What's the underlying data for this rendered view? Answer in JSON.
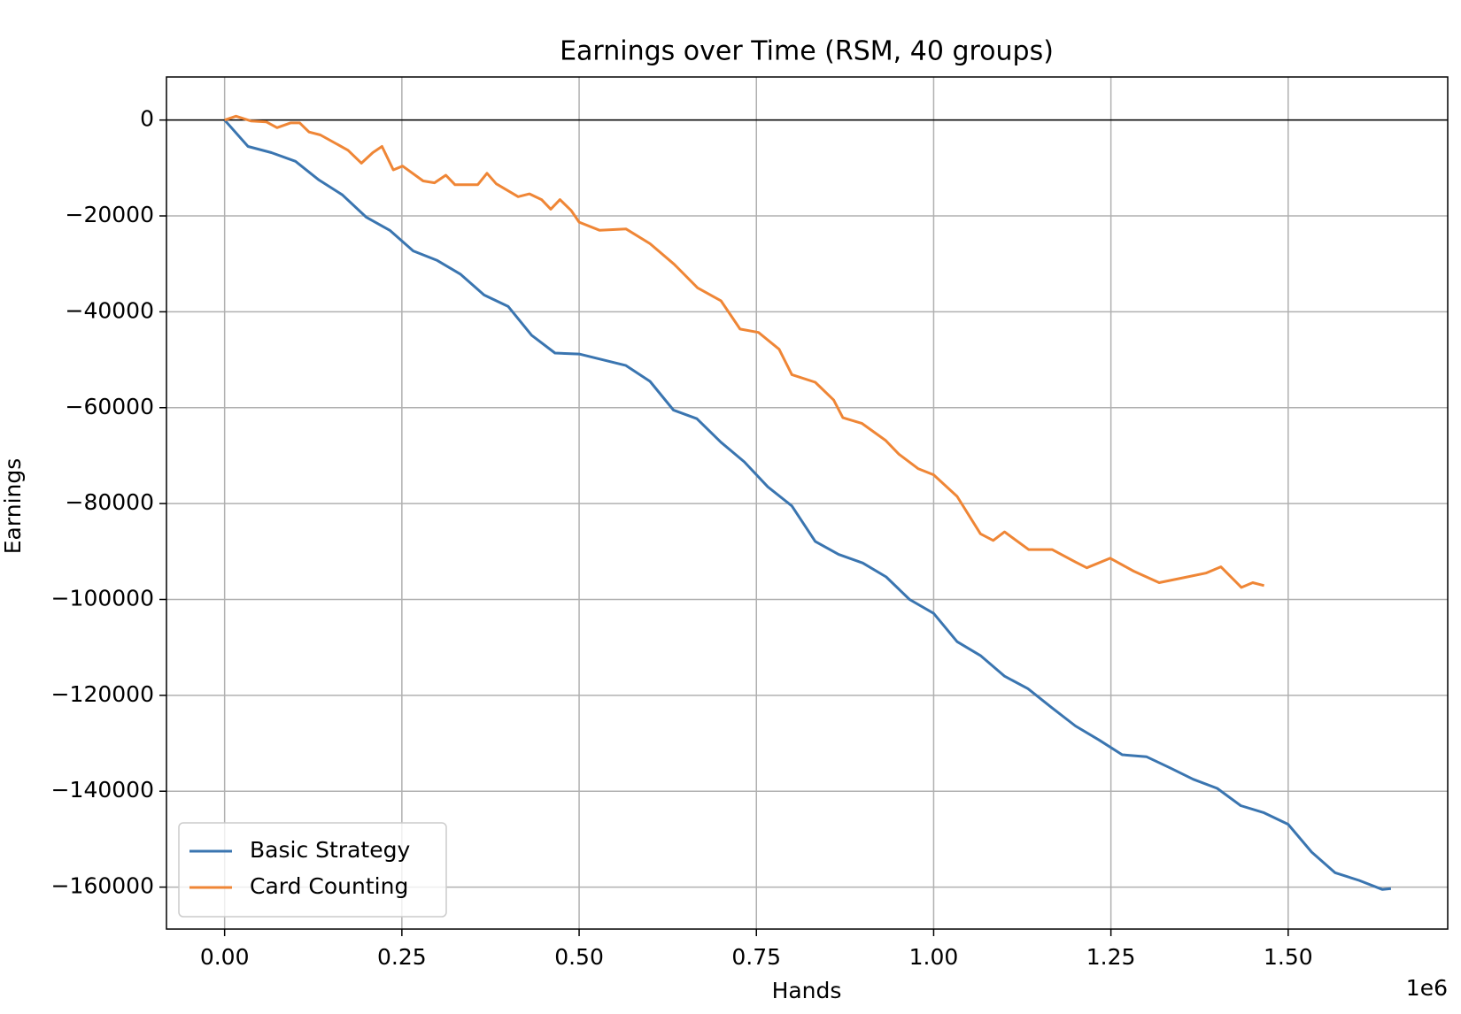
{
  "chart_data": {
    "type": "line",
    "title": "Earnings over Time (RSM, 40 groups)",
    "x_label": "Hands",
    "y_label": "Earnings",
    "x_offset_label": "1e6",
    "xlim": [
      -0.082,
      1.725
    ],
    "ylim": [
      -168750,
      8980
    ],
    "xticks": [
      {
        "value": 0,
        "label": "0.00"
      },
      {
        "value": 0.25,
        "label": "0.25"
      },
      {
        "value": 0.5,
        "label": "0.50"
      },
      {
        "value": 0.75,
        "label": "0.75"
      },
      {
        "value": 1.0,
        "label": "1.00"
      },
      {
        "value": 1.25,
        "label": "1.25"
      },
      {
        "value": 1.5,
        "label": "1.50"
      }
    ],
    "yticks": [
      0,
      {
        "value": -20000,
        "label": "−20000"
      },
      {
        "value": -40000,
        "label": "−40000"
      },
      {
        "value": -60000,
        "label": "−60000"
      },
      {
        "value": -80000,
        "label": "−80000"
      },
      {
        "value": -100000,
        "label": "−100000"
      },
      {
        "value": -120000,
        "label": "−120000"
      },
      {
        "value": -140000,
        "label": "−140000"
      },
      {
        "value": -160000,
        "label": "−160000"
      }
    ],
    "grid": true,
    "reference_line": 0,
    "legend": "lower left",
    "series": [
      {
        "name": "Basic Strategy",
        "color": "#3a75b0",
        "x": [
          0,
          0.033,
          0.066,
          0.1,
          0.133,
          0.166,
          0.2,
          0.233,
          0.266,
          0.3,
          0.333,
          0.366,
          0.4,
          0.433,
          0.466,
          0.5,
          0.533,
          0.566,
          0.6,
          0.633,
          0.666,
          0.7,
          0.733,
          0.766,
          0.8,
          0.833,
          0.866,
          0.9,
          0.933,
          0.966,
          1.0,
          1.033,
          1.066,
          1.1,
          1.133,
          1.166,
          1.2,
          1.233,
          1.266,
          1.3,
          1.333,
          1.366,
          1.4,
          1.433,
          1.466,
          1.5,
          1.533,
          1.566,
          1.6,
          1.633,
          1.645
        ],
        "values": [
          0,
          -5500,
          -6800,
          -8600,
          -12500,
          -15600,
          -20300,
          -23000,
          -27300,
          -29300,
          -32200,
          -36500,
          -38900,
          -44900,
          -48600,
          -48800,
          -50000,
          -51200,
          -54500,
          -60500,
          -62300,
          -67200,
          -71300,
          -76500,
          -80500,
          -87900,
          -90600,
          -92400,
          -95300,
          -100000,
          -102900,
          -108800,
          -111700,
          -116000,
          -118600,
          -122500,
          -126400,
          -129300,
          -132400,
          -132800,
          -135100,
          -137500,
          -139400,
          -143000,
          -144500,
          -146900,
          -152700,
          -157000,
          -158600,
          -160500,
          -160300
        ]
      },
      {
        "name": "Card Counting",
        "color": "#ef8636",
        "x": [
          0,
          0.016,
          0.037,
          0.059,
          0.074,
          0.093,
          0.106,
          0.119,
          0.135,
          0.174,
          0.193,
          0.209,
          0.222,
          0.238,
          0.251,
          0.28,
          0.296,
          0.312,
          0.325,
          0.357,
          0.37,
          0.383,
          0.414,
          0.43,
          0.447,
          0.46,
          0.473,
          0.489,
          0.5,
          0.529,
          0.566,
          0.6,
          0.634,
          0.667,
          0.7,
          0.727,
          0.753,
          0.782,
          0.8,
          0.833,
          0.859,
          0.872,
          0.899,
          0.932,
          0.951,
          0.978,
          1.0,
          1.033,
          1.066,
          1.084,
          1.1,
          1.134,
          1.167,
          1.2,
          1.216,
          1.249,
          1.282,
          1.318,
          1.351,
          1.384,
          1.405,
          1.434,
          1.45,
          1.466
        ],
        "values": [
          0,
          800,
          -200,
          -400,
          -1600,
          -600,
          -600,
          -2500,
          -3100,
          -6300,
          -9000,
          -6800,
          -5500,
          -10400,
          -9600,
          -12700,
          -13100,
          -11500,
          -13500,
          -13500,
          -11100,
          -13300,
          -16000,
          -15400,
          -16600,
          -18600,
          -16600,
          -18900,
          -21300,
          -23000,
          -22700,
          -25800,
          -30100,
          -35000,
          -37700,
          -43600,
          -44300,
          -47800,
          -53100,
          -54700,
          -58400,
          -62100,
          -63300,
          -66800,
          -69700,
          -72700,
          -74000,
          -78500,
          -86300,
          -87700,
          -85900,
          -89600,
          -89600,
          -92200,
          -93400,
          -91400,
          -94100,
          -96500,
          -95500,
          -94500,
          -93200,
          -97500,
          -96500,
          -97100
        ]
      }
    ]
  }
}
